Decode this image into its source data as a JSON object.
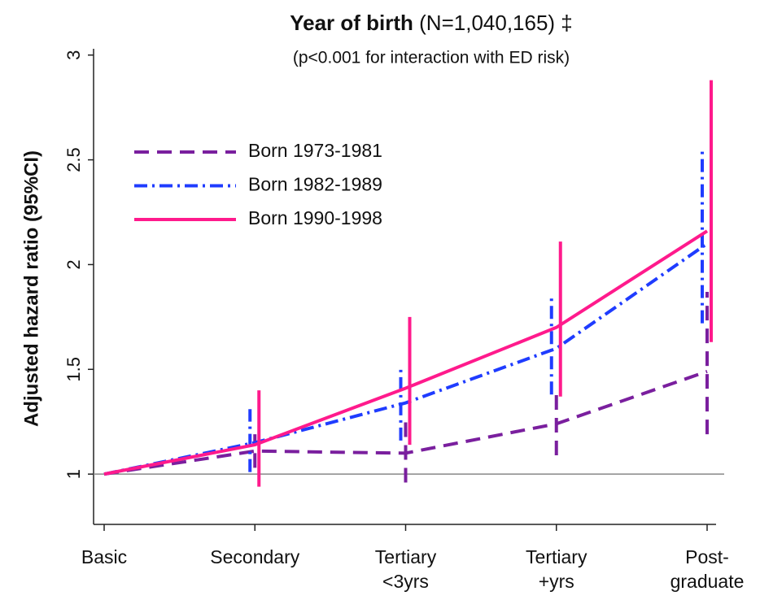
{
  "chart_data": {
    "type": "line",
    "title": "Year of birth",
    "title_suffix": "(N=1,040,165) ‡",
    "subtitle": "(p<0.001 for interaction with ED risk)",
    "y_label": "Adjusted hazard ratio (95%CI)",
    "categories": [
      "Basic",
      "Secondary",
      "Tertiary\n<3yrs",
      "Tertiary\n+yrs",
      "Post-\ngraduate"
    ],
    "ylim": [
      0.76,
      3.03
    ],
    "yticks": [
      1,
      1.5,
      2,
      2.5,
      3
    ],
    "reference_line": 1,
    "legend": "upper left",
    "series": [
      {
        "name": "Born 1973-1981",
        "color": "#7a1f9e",
        "dash": "18 10",
        "values": [
          1,
          1.11,
          1.1,
          1.24,
          1.49
        ],
        "lower": [
          null,
          1.03,
          0.96,
          1.09,
          1.19
        ],
        "upper": [
          null,
          1.19,
          1.25,
          1.4,
          1.87
        ]
      },
      {
        "name": "Born 1982-1989",
        "color": "#1f3cff",
        "dash": "16 6 3 6",
        "values": [
          1,
          1.15,
          1.34,
          1.6,
          2.1
        ],
        "lower": [
          null,
          1.01,
          1.16,
          1.38,
          1.72
        ],
        "upper": [
          null,
          1.31,
          1.52,
          1.84,
          2.56
        ]
      },
      {
        "name": "Born 1990-1998",
        "color": "#ff1a8c",
        "dash": "",
        "values": [
          1,
          1.14,
          1.41,
          1.7,
          2.16
        ],
        "lower": [
          null,
          0.94,
          1.14,
          1.37,
          1.63
        ],
        "upper": [
          null,
          1.4,
          1.75,
          2.11,
          2.88
        ]
      }
    ]
  }
}
